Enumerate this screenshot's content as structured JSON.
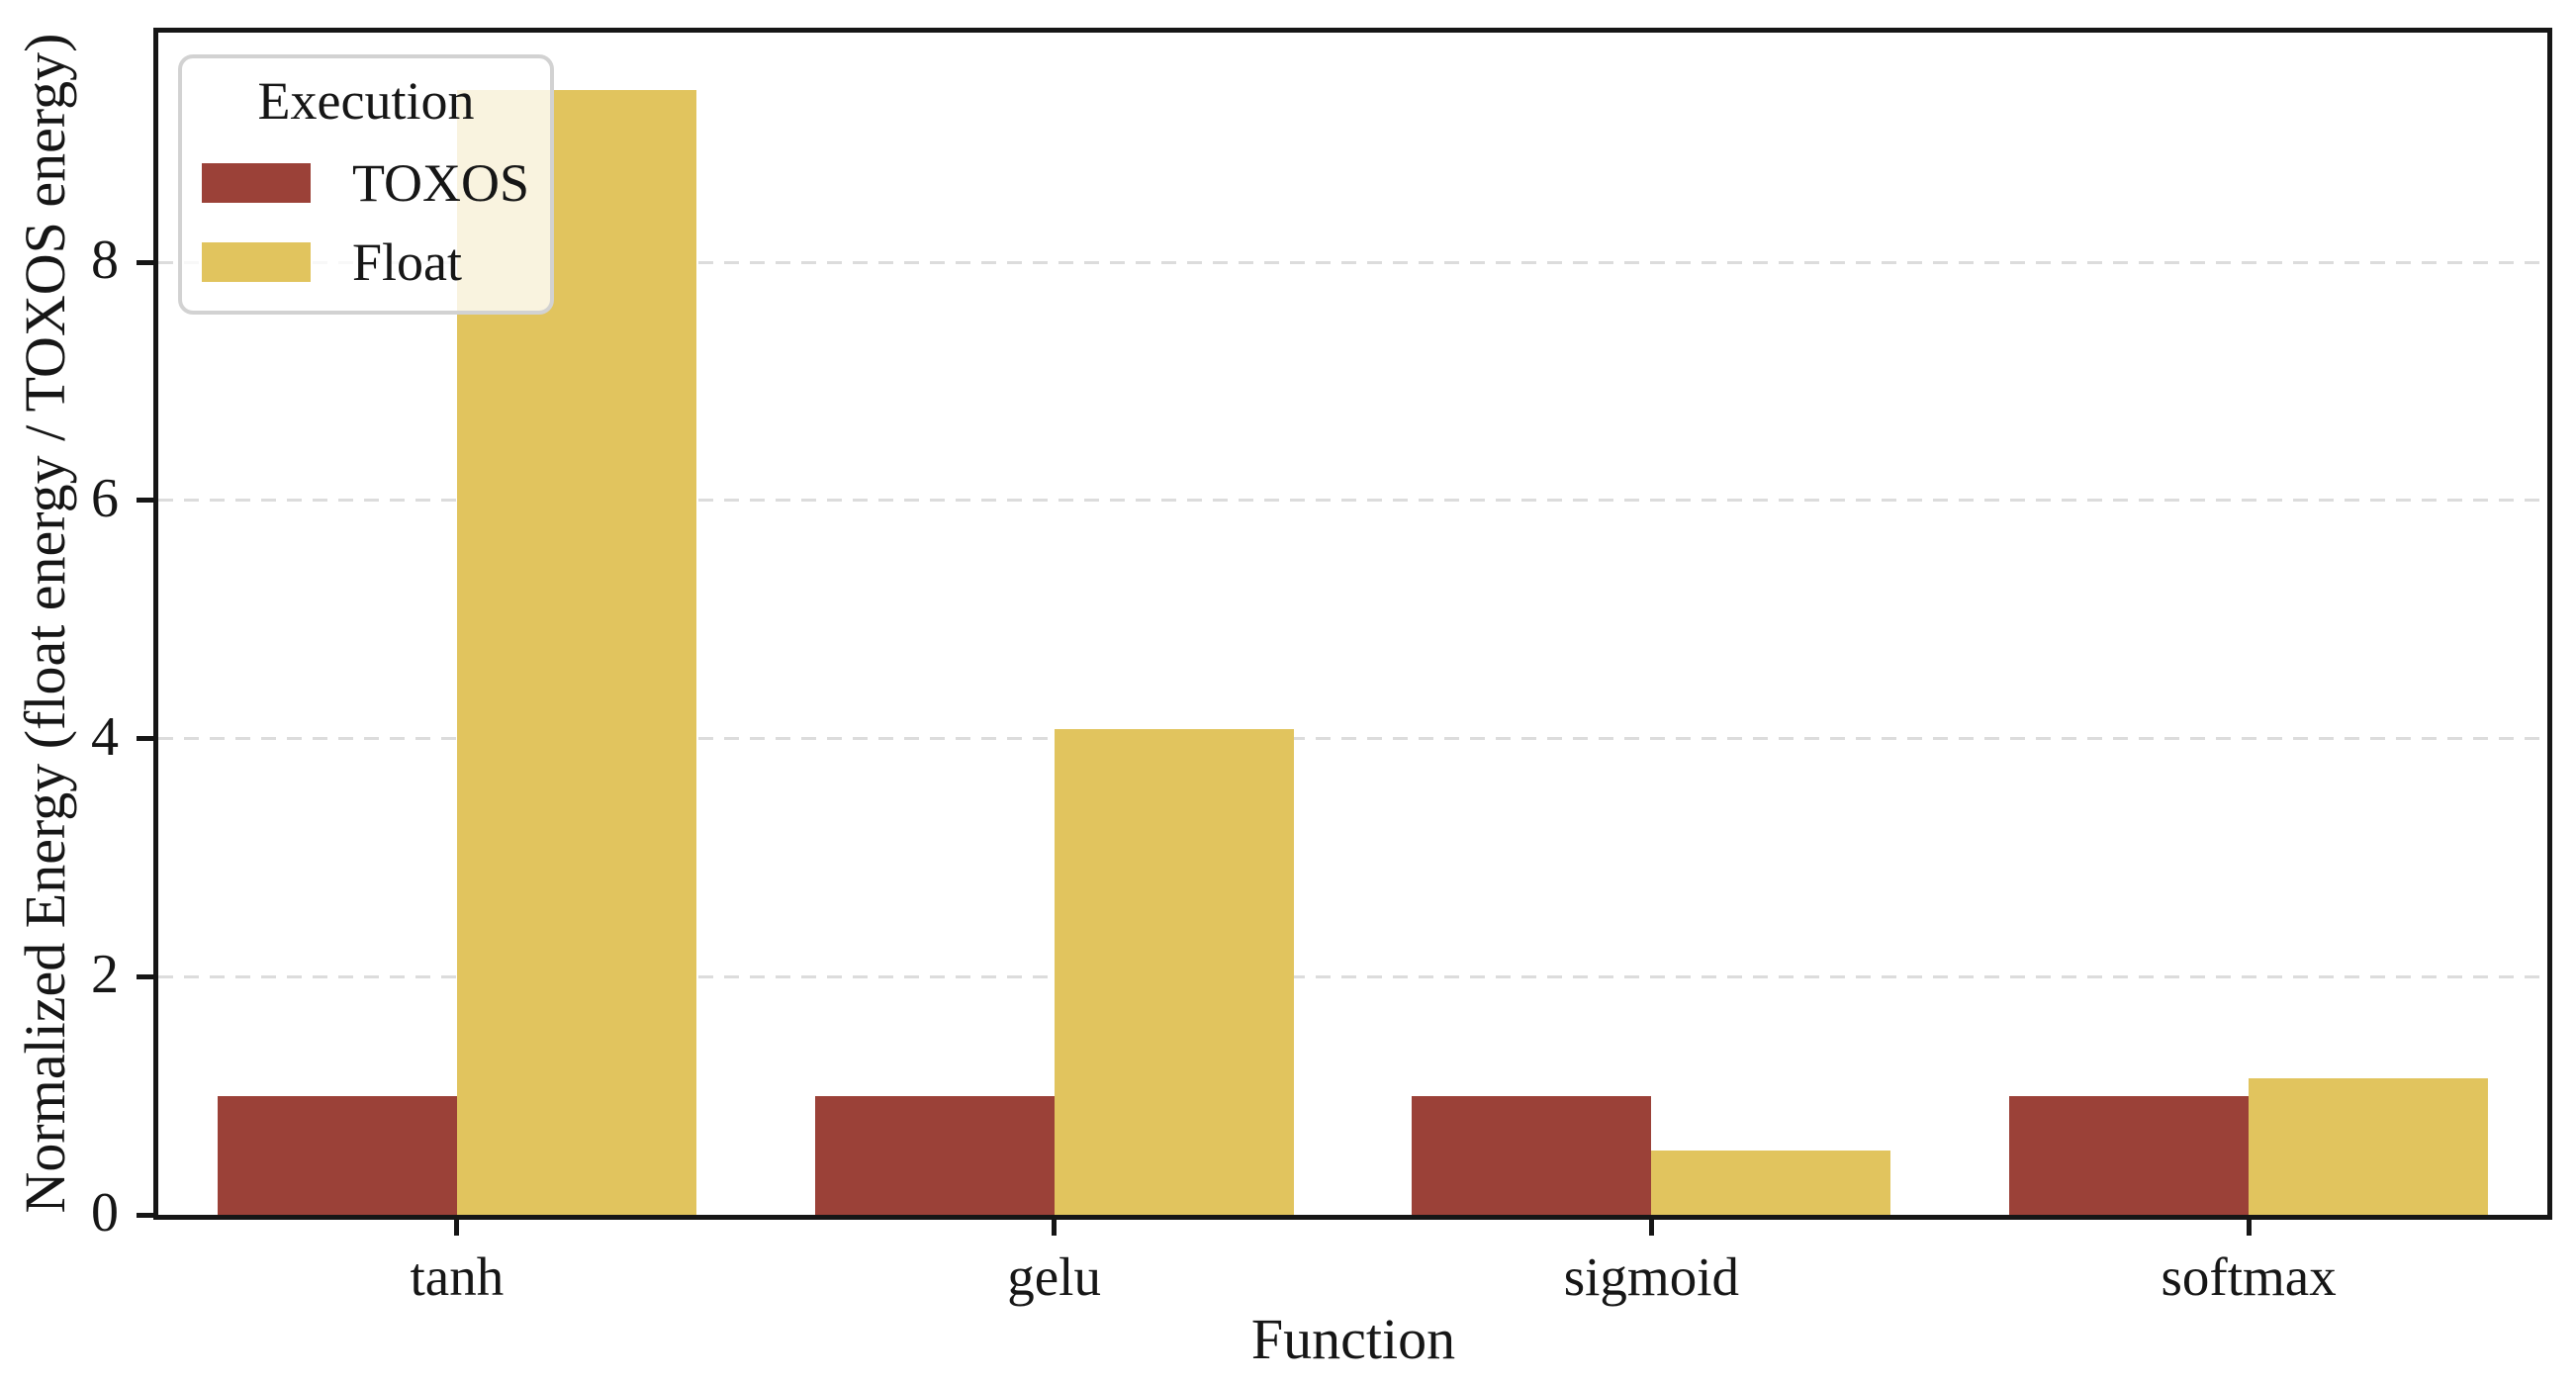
{
  "chart_data": {
    "type": "bar",
    "title": "",
    "xlabel": "Function",
    "ylabel": "Normalized Energy (float energy / TOXOS energy)",
    "categories": [
      "tanh",
      "gelu",
      "sigmoid",
      "softmax"
    ],
    "series": [
      {
        "name": "TOXOS",
        "color": "#9B4138",
        "values": [
          1.0,
          1.0,
          1.0,
          1.0
        ]
      },
      {
        "name": "Float",
        "color": "#E1C45E",
        "values": [
          9.45,
          4.08,
          0.54,
          1.15
        ]
      }
    ],
    "ylim": [
      0,
      9.93
    ],
    "yticks": [
      0,
      2,
      4,
      6,
      8
    ],
    "group_width": 0.8,
    "legend": {
      "title": "Execution",
      "position": "upper-left"
    },
    "grid": {
      "axis": "y",
      "style": "dashed",
      "color": "#DCDCDC"
    },
    "colors": {
      "spine": "#161616",
      "text": "#161616",
      "background": "#FFFFFF"
    }
  }
}
